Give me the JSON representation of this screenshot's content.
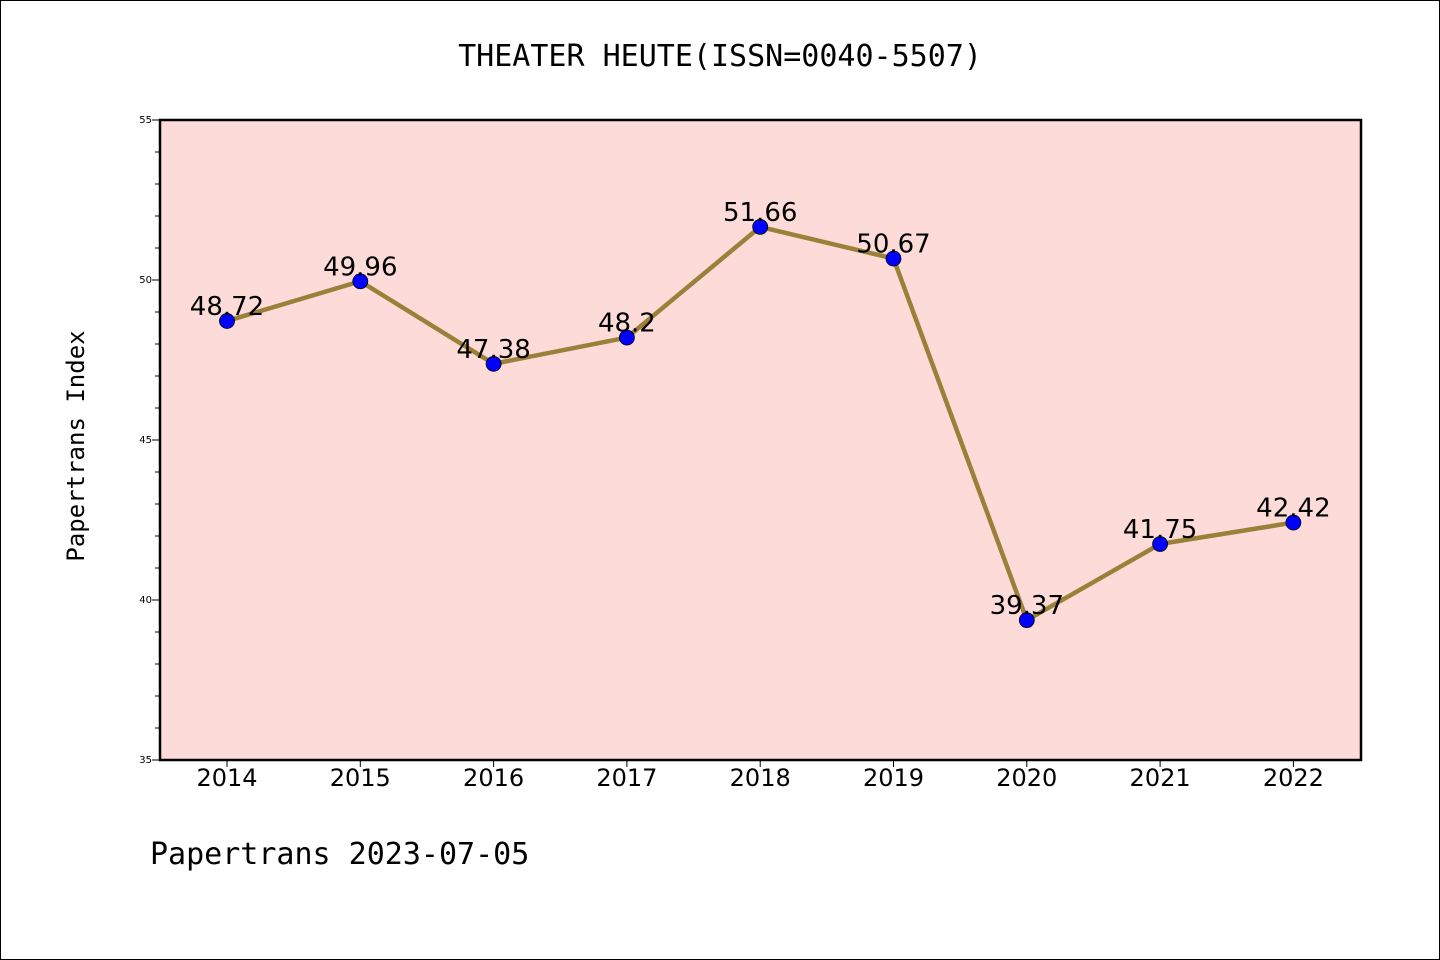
{
  "chart_data": {
    "type": "line",
    "title": "THEATER HEUTE(ISSN=0040-5507)",
    "ylabel": "Papertrans Index",
    "xlabel": "",
    "footer": "Papertrans 2023-07-05",
    "categories": [
      "2014",
      "2015",
      "2016",
      "2017",
      "2018",
      "2019",
      "2020",
      "2021",
      "2022"
    ],
    "values": [
      48.72,
      49.96,
      47.38,
      48.2,
      51.66,
      50.67,
      39.37,
      41.75,
      42.42
    ],
    "data_labels": [
      "48.72",
      "49.96",
      "47.38",
      "48.2",
      "51.66",
      "50.67",
      "39.37",
      "41.75",
      "42.42"
    ],
    "ylim": [
      35,
      55
    ],
    "yticks": [
      35,
      40,
      45,
      50,
      55
    ],
    "grid": false,
    "colors": {
      "plot_background": "#fddbd8",
      "line": "#9a8038",
      "marker": "#0000ff",
      "axis": "#000000"
    }
  }
}
